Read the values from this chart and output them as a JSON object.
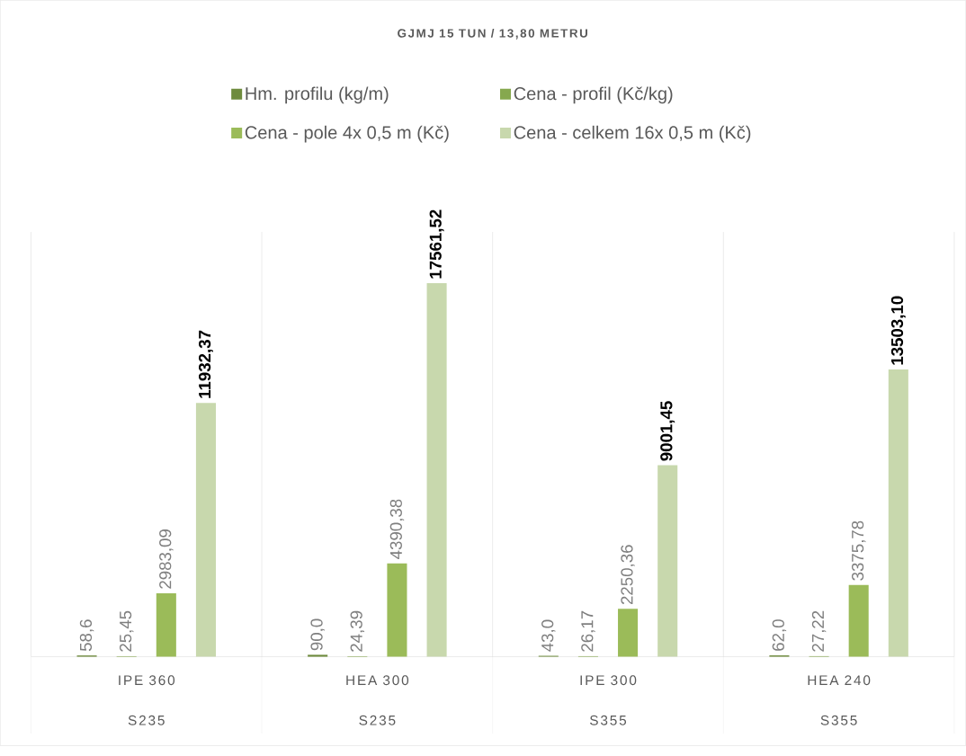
{
  "chart_data": {
    "type": "bar",
    "title": "GJMJ 15 TUN / 13,80 METRU",
    "categories": [
      "IPE 360",
      "HEA 300",
      "IPE 300",
      "HEA 240"
    ],
    "annotations": [
      "S235",
      "S235",
      "S355",
      "S355"
    ],
    "series": [
      {
        "name": "Hm. profilu  (kg/m)",
        "color": "#6e8b3d",
        "values": [
          58.6,
          90.0,
          43.0,
          62.0
        ],
        "value_labels": [
          "58,6",
          "90,0",
          "43,0",
          "62,0"
        ]
      },
      {
        "name": "Cena - profil (Kč/kg)",
        "color": "#86a84e",
        "values": [
          25.45,
          24.39,
          26.17,
          27.22
        ],
        "value_labels": [
          "25,45",
          "24,39",
          "26,17",
          "27,22"
        ]
      },
      {
        "name": "Cena - pole 4x 0,5 m  (Kč)",
        "color": "#9bbb59",
        "values": [
          2983.09,
          4390.38,
          2250.36,
          3375.78
        ],
        "value_labels": [
          "2983,09",
          "4390,38",
          "2250,36",
          "3375,78"
        ]
      },
      {
        "name": "Cena - celkem 16x 0,5 m  (Kč)",
        "color": "#c8d8ad",
        "values": [
          11932.37,
          17561.52,
          9001.45,
          13503.1
        ],
        "value_labels": [
          "11932,37",
          "17561,52",
          "9001,45",
          "13503,10"
        ]
      }
    ],
    "legend": "top"
  }
}
